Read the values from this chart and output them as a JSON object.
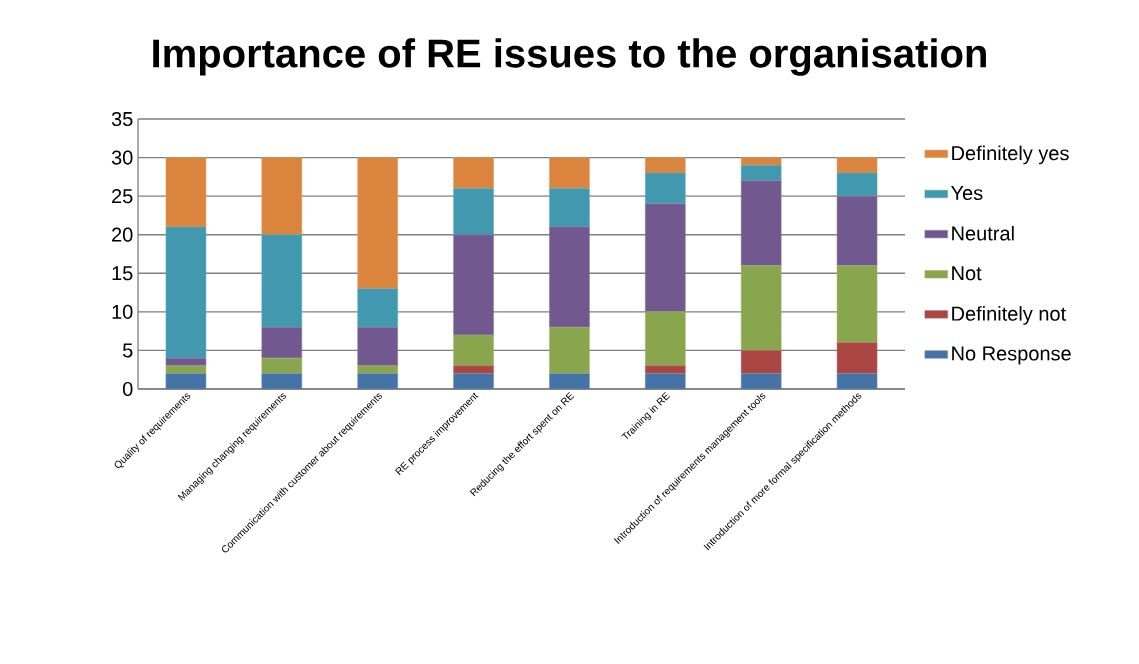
{
  "chart_data": {
    "type": "bar",
    "title": "Importance of RE issues to the organisation",
    "categories": [
      "Quality of requirements",
      "Managing changing requirements",
      "Communication with customer about requirements",
      "RE process improvement",
      "Reducing the effort spent on RE",
      "Training in RE",
      "Introduction of requirements management tools",
      "Introduction of more formal specification methods"
    ],
    "stacked": true,
    "ylim": [
      0,
      35
    ],
    "yticks": [
      0,
      5,
      10,
      15,
      20,
      25,
      30,
      35
    ],
    "grid": "y",
    "legend": "right",
    "series": [
      {
        "name": "No Response",
        "color": "#4572a7",
        "values": [
          2,
          2,
          2,
          2,
          2,
          2,
          2,
          2
        ]
      },
      {
        "name": "Definitely not",
        "color": "#aa4643",
        "values": [
          0,
          0,
          0,
          1,
          0,
          1,
          3,
          4
        ]
      },
      {
        "name": "Not",
        "color": "#89a54e",
        "values": [
          1,
          2,
          1,
          4,
          6,
          7,
          11,
          10
        ]
      },
      {
        "name": "Neutral",
        "color": "#71588f",
        "values": [
          1,
          4,
          5,
          13,
          13,
          14,
          11,
          9
        ]
      },
      {
        "name": "Yes",
        "color": "#4198af",
        "values": [
          17,
          12,
          5,
          6,
          5,
          4,
          2,
          3
        ]
      },
      {
        "name": "Definitely yes",
        "color": "#db843d",
        "values": [
          9,
          10,
          17,
          4,
          4,
          2,
          1,
          2
        ]
      }
    ]
  }
}
